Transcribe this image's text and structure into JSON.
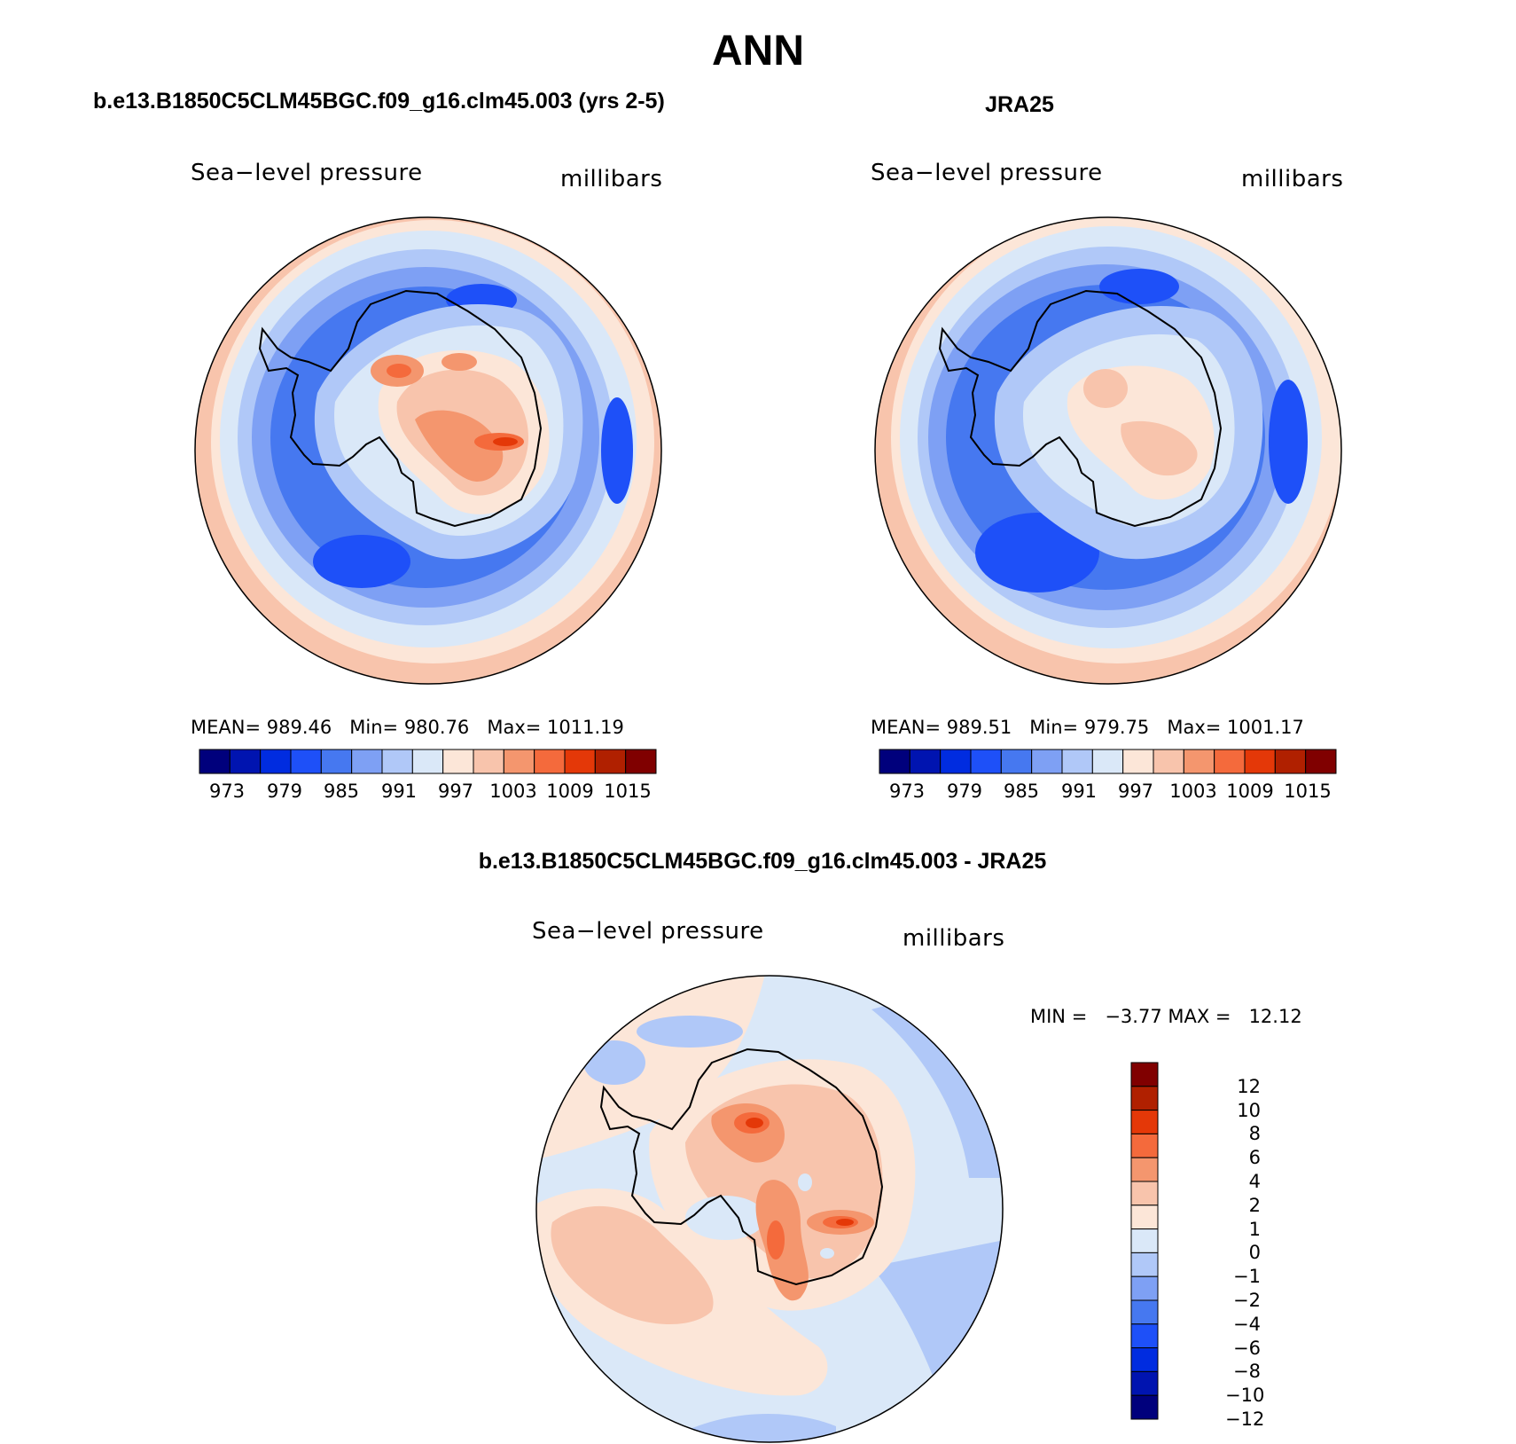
{
  "figure": {
    "title": "ANN"
  },
  "colors": {
    "levels": [
      "#00007c",
      "#0014b0",
      "#002ce0",
      "#1e50f8",
      "#4678f0",
      "#7ea0f4",
      "#b0c8f8",
      "#dae8f8",
      "#fce6d8",
      "#f8c4ac",
      "#f4966e",
      "#f46a3c",
      "#e43808",
      "#b02000",
      "#800000"
    ],
    "land_outline": "#000000"
  },
  "panels": [
    {
      "title": "b.e13.B1850C5CLM45BGC.f09_g16.clm45.003 (yrs 2-5)",
      "variable": "Sea−level pressure",
      "units": "millibars",
      "stats": {
        "mean_label": "MEAN=",
        "mean": "989.46",
        "min_label": "Min=",
        "min": "980.76",
        "max_label": "Max=",
        "max": "1011.19"
      },
      "colorbar_labels": [
        "973",
        "979",
        "985",
        "991",
        "997",
        "1003",
        "1009",
        "1015"
      ]
    },
    {
      "title": "JRA25",
      "variable": "Sea−level pressure",
      "units": "millibars",
      "stats": {
        "mean_label": "MEAN=",
        "mean": "989.51",
        "min_label": "Min=",
        "min": "979.75",
        "max_label": "Max=",
        "max": "1001.17"
      },
      "colorbar_labels": [
        "973",
        "979",
        "985",
        "991",
        "997",
        "1003",
        "1009",
        "1015"
      ]
    },
    {
      "title": "b.e13.B1850C5CLM45BGC.f09_g16.clm45.003 - JRA25",
      "variable": "Sea−level pressure",
      "units": "millibars",
      "stats": {
        "min_label": "MIN =",
        "min": "−3.77",
        "max_label": "MAX =",
        "max": "12.12"
      },
      "colorbar_labels": [
        "12",
        "10",
        "8",
        "6",
        "4",
        "2",
        "1",
        "0",
        "−1",
        "−2",
        "−4",
        "−6",
        "−8",
        "−10",
        "−12"
      ]
    }
  ]
}
